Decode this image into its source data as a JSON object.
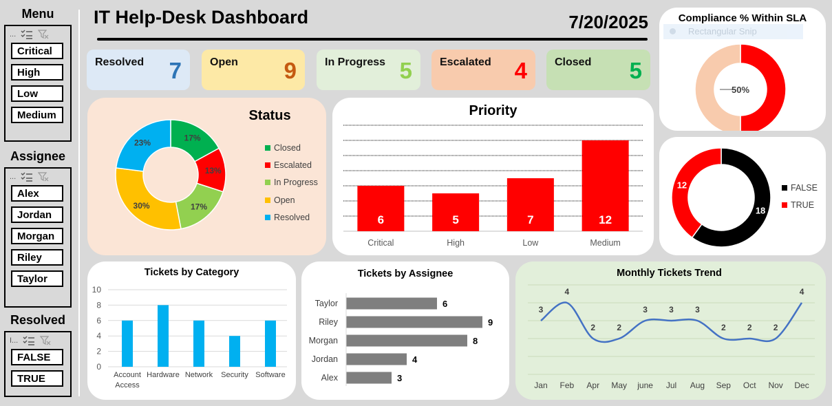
{
  "sidebar": {
    "menu": {
      "title": "Menu",
      "items": [
        "Critical",
        "High",
        "Low",
        "Medium"
      ]
    },
    "assignee": {
      "title": "Assignee",
      "items": [
        "Alex",
        "Jordan",
        "Morgan",
        "Riley",
        "Taylor"
      ]
    },
    "resolved": {
      "title": "Resolved",
      "items": [
        "FALSE",
        "TRUE"
      ],
      "header_text": "I..."
    }
  },
  "header": {
    "title": "IT Help-Desk Dashboard",
    "date": "7/20/2025"
  },
  "kpis": [
    {
      "label": "Resolved",
      "value": "7",
      "bg": "#dde9f6",
      "color": "#2e75b6"
    },
    {
      "label": "Open",
      "value": "9",
      "bg": "#fde9a6",
      "color": "#c55a11"
    },
    {
      "label": "In Progress",
      "value": "5",
      "bg": "#e2efda",
      "color": "#92d050"
    },
    {
      "label": "Escalated",
      "value": "4",
      "bg": "#f8cbad",
      "color": "#ff0000"
    },
    {
      "label": "Closed",
      "value": "5",
      "bg": "#c6e0b4",
      "color": "#00b050"
    }
  ],
  "overlay": {
    "text": "Rectangular Snip"
  },
  "charts": {
    "compliance": {
      "chart_data": {
        "type": "pie",
        "title": "Compliance % Within SLA",
        "slices": [
          {
            "value": 50,
            "color": "#ff0000"
          },
          {
            "value": 50,
            "color": "#f8cbad"
          }
        ],
        "center_label": "50%"
      }
    },
    "resolved_donut": {
      "chart_data": {
        "type": "pie",
        "slices": [
          {
            "name": "FALSE",
            "value": 18,
            "color": "#000000"
          },
          {
            "name": "TRUE",
            "value": 12,
            "color": "#ff0000"
          }
        ],
        "legend": "right"
      }
    },
    "status": {
      "chart_data": {
        "type": "pie",
        "title": "Status",
        "slices": [
          {
            "name": "Closed",
            "value": 17,
            "label": "17%",
            "color": "#00b050"
          },
          {
            "name": "Escalated",
            "value": 13,
            "label": "13%",
            "color": "#ff0000"
          },
          {
            "name": "In Progress",
            "value": 17,
            "label": "17%",
            "color": "#92d050"
          },
          {
            "name": "Open",
            "value": 30,
            "label": "30%",
            "color": "#ffc000"
          },
          {
            "name": "Resolved",
            "value": 23,
            "label": "23%",
            "color": "#00b0f0"
          }
        ],
        "legend": "right"
      }
    },
    "priority": {
      "chart_data": {
        "type": "bar",
        "title": "Priority",
        "categories": [
          "Critical",
          "High",
          "Low",
          "Medium"
        ],
        "values": [
          6,
          5,
          7,
          12
        ],
        "ylim": [
          0,
          14
        ],
        "grid": true,
        "color": "#ff0000"
      }
    },
    "category": {
      "chart_data": {
        "type": "bar",
        "title": "Tickets by Category",
        "categories": [
          "Account Access",
          "Hardware",
          "Network",
          "Security",
          "Software"
        ],
        "values": [
          6,
          8,
          6,
          4,
          6
        ],
        "ylim": [
          0,
          10
        ],
        "yticks": [
          "0",
          "2",
          "4",
          "6",
          "8",
          "10"
        ],
        "grid": true,
        "color": "#00b0f0"
      }
    },
    "assignee": {
      "chart_data": {
        "type": "bar",
        "orientation": "horizontal",
        "title": "Tickets by Assignee",
        "categories": [
          "Taylor",
          "Riley",
          "Morgan",
          "Jordan",
          "Alex"
        ],
        "values": [
          6,
          9,
          8,
          4,
          3
        ],
        "xlim": [
          0,
          9
        ],
        "color": "#7f7f7f"
      }
    },
    "trend": {
      "chart_data": {
        "type": "line",
        "title": "Monthly Tickets Trend",
        "x": [
          "Jan",
          "Feb",
          "Apr",
          "May",
          "june",
          "Jul",
          "Aug",
          "Sep",
          "Oct",
          "Nov",
          "Dec"
        ],
        "values": [
          3,
          4,
          2,
          2,
          3,
          3,
          3,
          2,
          2,
          2,
          4
        ],
        "ylim": [
          0,
          5
        ],
        "grid": true,
        "color": "#4472c4"
      }
    }
  }
}
